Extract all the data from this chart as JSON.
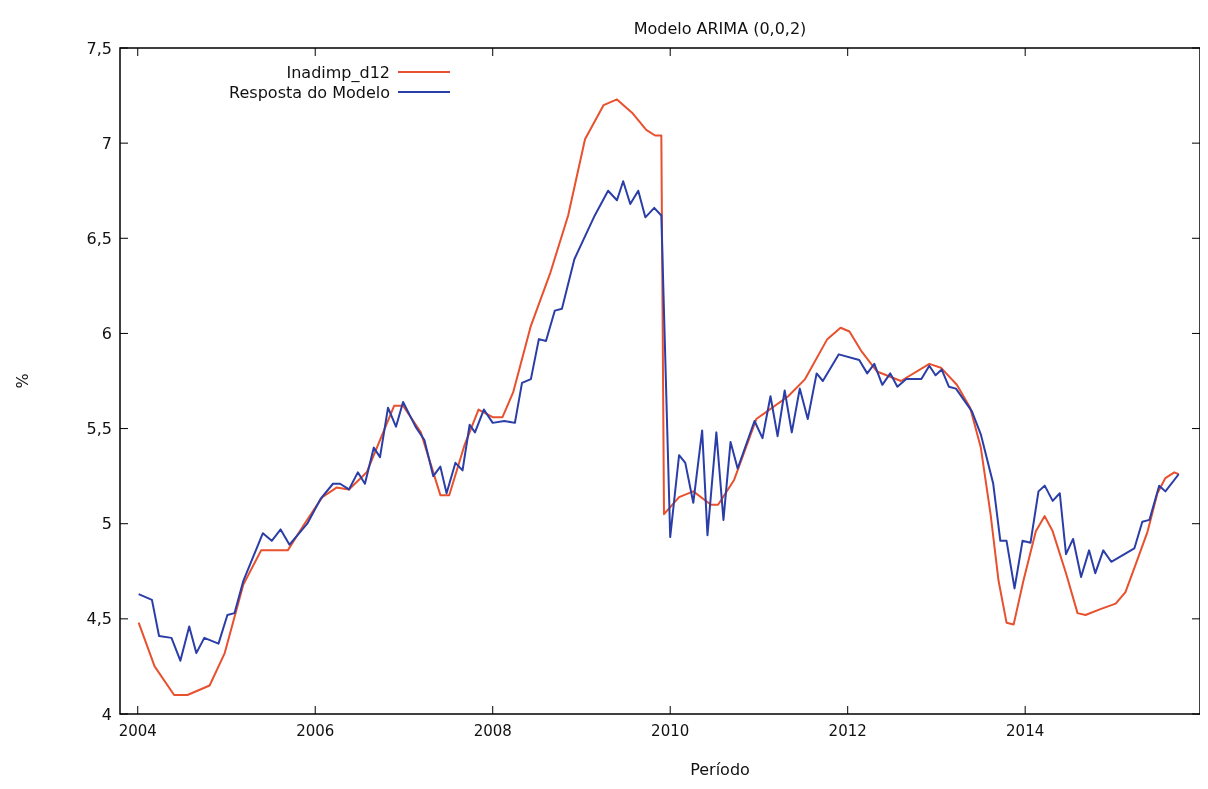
{
  "chart_data": {
    "type": "line",
    "title": "Modelo ARIMA (0,0,2)",
    "xlabel": "Período",
    "ylabel": "%",
    "xlim": [
      2003.8,
      2015.97
    ],
    "ylim": [
      4,
      7.5
    ],
    "xticks": [
      2004,
      2006,
      2008,
      2010,
      2012,
      2014
    ],
    "yticks": [
      4,
      {
        "value": 4.5,
        "label": "4,5"
      },
      5,
      {
        "value": 5.5,
        "label": "5,5"
      },
      6,
      {
        "value": 6.5,
        "label": "6,5"
      },
      7,
      {
        "value": 7.5,
        "label": "7,5"
      }
    ],
    "grid": false,
    "legend": "top left",
    "marker": "none",
    "line_style": "solid",
    "series": [
      {
        "name": "Inadimp_d12",
        "color": "#e8502e",
        "x": [
          2004.01,
          2004.19,
          2004.41,
          2004.56,
          2004.81,
          2004.98,
          2005.19,
          2005.39,
          2005.69,
          2005.88,
          2006.08,
          2006.24,
          2006.38,
          2006.58,
          2006.89,
          2006.99,
          2007.19,
          2007.41,
          2007.51,
          2007.68,
          2007.84,
          2008.0,
          2008.11,
          2008.23,
          2008.43,
          2008.65,
          2008.85,
          2009.04,
          2009.25,
          2009.4,
          2009.57,
          2009.73,
          2009.83,
          2009.9,
          2009.93,
          2010.1,
          2010.26,
          2010.46,
          2010.54,
          2010.72,
          2010.97,
          2011.33,
          2011.52,
          2011.77,
          2011.92,
          2012.02,
          2012.15,
          2012.33,
          2012.6,
          2012.92,
          2013.05,
          2013.23,
          2013.38,
          2013.5,
          2013.61,
          2013.7,
          2013.79,
          2013.87,
          2013.98,
          2014.12,
          2014.22,
          2014.31,
          2014.46,
          2014.59,
          2014.68,
          2014.84,
          2015.02,
          2015.13,
          2015.24,
          2015.38,
          2015.49,
          2015.58,
          2015.68,
          2015.73
        ],
        "values": [
          4.48,
          4.25,
          4.1,
          4.1,
          4.15,
          4.32,
          4.68,
          4.86,
          4.86,
          5.0,
          5.14,
          5.19,
          5.18,
          5.27,
          5.62,
          5.62,
          5.48,
          5.15,
          5.15,
          5.41,
          5.6,
          5.56,
          5.56,
          5.69,
          6.04,
          6.32,
          6.62,
          7.02,
          7.2,
          7.23,
          7.16,
          7.07,
          7.04,
          7.04,
          5.05,
          5.14,
          5.17,
          5.1,
          5.1,
          5.23,
          5.55,
          5.67,
          5.76,
          5.97,
          6.03,
          6.01,
          5.91,
          5.8,
          5.75,
          5.84,
          5.82,
          5.73,
          5.61,
          5.4,
          5.05,
          4.7,
          4.48,
          4.47,
          4.7,
          4.96,
          5.04,
          4.96,
          4.74,
          4.53,
          4.52,
          4.55,
          4.58,
          4.64,
          4.78,
          4.96,
          5.16,
          5.24,
          5.27,
          5.26
        ]
      },
      {
        "name": "Resposta do Modelo",
        "color": "#2b3ea8",
        "x": [
          2004.01,
          2004.16,
          2004.24,
          2004.38,
          2004.48,
          2004.58,
          2004.66,
          2004.75,
          2004.91,
          2005.01,
          2005.09,
          2005.19,
          2005.41,
          2005.51,
          2005.61,
          2005.71,
          2005.91,
          2006.06,
          2006.2,
          2006.28,
          2006.38,
          2006.48,
          2006.56,
          2006.66,
          2006.73,
          2006.82,
          2006.91,
          2006.99,
          2007.13,
          2007.23,
          2007.33,
          2007.41,
          2007.48,
          2007.58,
          2007.66,
          2007.74,
          2007.8,
          2007.9,
          2008.0,
          2008.13,
          2008.25,
          2008.33,
          2008.43,
          2008.52,
          2008.6,
          2008.7,
          2008.78,
          2008.92,
          2009.15,
          2009.3,
          2009.4,
          2009.47,
          2009.55,
          2009.64,
          2009.72,
          2009.82,
          2009.9,
          2010.0,
          2010.1,
          2010.17,
          2010.26,
          2010.36,
          2010.42,
          2010.52,
          2010.6,
          2010.68,
          2010.76,
          2010.95,
          2011.04,
          2011.13,
          2011.21,
          2011.29,
          2011.37,
          2011.46,
          2011.55,
          2011.65,
          2011.72,
          2011.9,
          2012.13,
          2012.22,
          2012.3,
          2012.39,
          2012.48,
          2012.56,
          2012.66,
          2012.83,
          2012.92,
          2012.99,
          2013.06,
          2013.14,
          2013.22,
          2013.4,
          2013.5,
          2013.64,
          2013.72,
          2013.79,
          2013.88,
          2013.97,
          2014.06,
          2014.15,
          2014.22,
          2014.31,
          2014.39,
          2014.46,
          2014.54,
          2014.63,
          2014.72,
          2014.79,
          2014.88,
          2014.97,
          2015.23,
          2015.32,
          2015.4,
          2015.51,
          2015.58,
          2015.73
        ],
        "values": [
          4.63,
          4.6,
          4.41,
          4.4,
          4.28,
          4.46,
          4.32,
          4.4,
          4.37,
          4.52,
          4.53,
          4.7,
          4.95,
          4.91,
          4.97,
          4.89,
          5.0,
          5.13,
          5.21,
          5.21,
          5.18,
          5.27,
          5.21,
          5.4,
          5.35,
          5.61,
          5.51,
          5.64,
          5.51,
          5.44,
          5.25,
          5.3,
          5.16,
          5.32,
          5.28,
          5.52,
          5.48,
          5.6,
          5.53,
          5.54,
          5.53,
          5.74,
          5.76,
          5.97,
          5.96,
          6.12,
          6.13,
          6.39,
          6.62,
          6.75,
          6.7,
          6.8,
          6.68,
          6.75,
          6.61,
          6.66,
          6.62,
          4.93,
          5.36,
          5.32,
          5.11,
          5.49,
          4.94,
          5.48,
          5.02,
          5.43,
          5.29,
          5.54,
          5.45,
          5.67,
          5.46,
          5.7,
          5.48,
          5.71,
          5.55,
          5.79,
          5.75,
          5.89,
          5.86,
          5.79,
          5.84,
          5.73,
          5.79,
          5.72,
          5.76,
          5.76,
          5.83,
          5.78,
          5.81,
          5.72,
          5.71,
          5.59,
          5.47,
          5.21,
          4.91,
          4.91,
          4.66,
          4.91,
          4.9,
          5.17,
          5.2,
          5.12,
          5.16,
          4.84,
          4.92,
          4.72,
          4.86,
          4.74,
          4.86,
          4.8,
          4.87,
          5.01,
          5.02,
          5.2,
          5.17,
          5.26
        ]
      }
    ]
  }
}
